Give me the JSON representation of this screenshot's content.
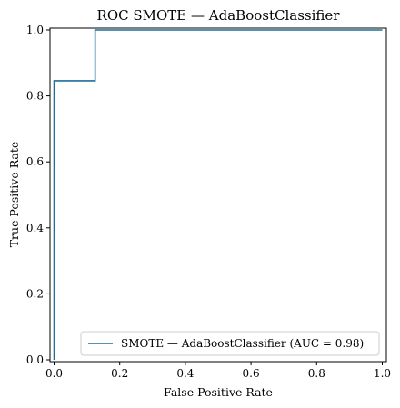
{
  "chart_data": {
    "type": "line",
    "title": "ROC SMOTE — AdaBoostClassifier",
    "xlabel": "False Positive Rate",
    "ylabel": "True Positive Rate",
    "xlim": [
      0,
      1
    ],
    "ylim": [
      0,
      1
    ],
    "x_ticks": [
      "0.0",
      "0.2",
      "0.4",
      "0.6",
      "0.8",
      "1.0"
    ],
    "y_ticks": [
      "0.0",
      "0.2",
      "0.4",
      "0.6",
      "0.8",
      "1.0"
    ],
    "grid": false,
    "legend_position": "lower-right",
    "series": [
      {
        "name": "SMOTE — AdaBoostClassifier (AUC = 0.98)",
        "color": "#1f6f98",
        "x": [
          0.0,
          0.0,
          0.0,
          0.125,
          0.125,
          1.0
        ],
        "y": [
          0.0,
          0.0,
          0.846,
          0.846,
          1.0,
          1.0
        ]
      }
    ]
  }
}
